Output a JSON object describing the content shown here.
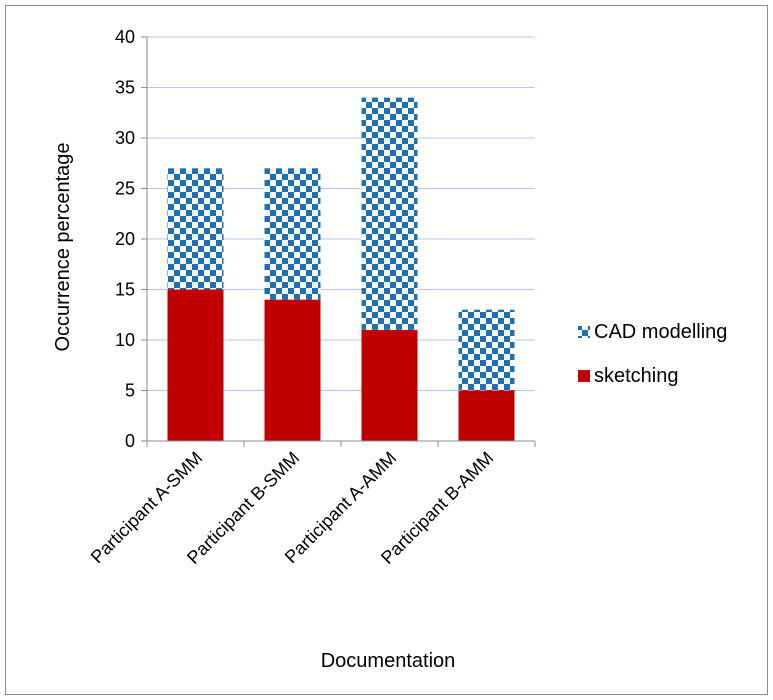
{
  "chart_data": {
    "type": "bar",
    "stacked": true,
    "categories": [
      "Participant A-SMM",
      "Participant B-SMM",
      "Participant A-AMM",
      "Participant B-AMM"
    ],
    "series": [
      {
        "name": "sketching",
        "values": [
          15,
          14,
          11,
          5
        ],
        "color": "#c00000",
        "pattern": "solid"
      },
      {
        "name": "CAD modelling",
        "values": [
          12,
          13,
          23,
          8
        ],
        "color": "#1f6fb4",
        "pattern": "checkerboard"
      }
    ],
    "xlabel": "Documentation",
    "ylabel": "Occurrence percentage",
    "ylim": [
      0,
      40
    ],
    "yticks": [
      0,
      5,
      10,
      15,
      20,
      25,
      30,
      35,
      40
    ],
    "grid": true,
    "legend_position": "right",
    "legend_order": [
      "CAD modelling",
      "sketching"
    ]
  }
}
